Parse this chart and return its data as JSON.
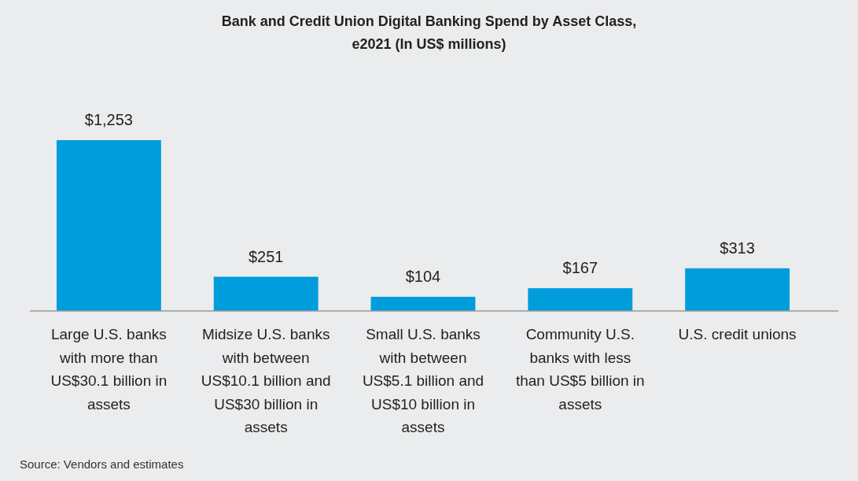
{
  "chart_data": {
    "type": "bar",
    "title": "Bank and Credit Union Digital Banking Spend by Asset Class, e2021 (In US$ millions)",
    "categories": [
      "Large U.S. banks with more than US$30.1 billion in assets",
      "Midsize U.S. banks with between US$10.1 billion and US$30 billion in assets",
      "Small U.S. banks with between US$5.1 billion and US$10 billion in assets",
      "Community U.S. banks with less than US$5 billion in assets",
      "U.S. credit unions"
    ],
    "values": [
      1253,
      251,
      104,
      167,
      313
    ],
    "value_labels": [
      "$1,253",
      "$251",
      "$104",
      "$167",
      "$313"
    ],
    "color": "#009ddc",
    "annotations": [
      "Source: Vendors and estimates"
    ]
  }
}
